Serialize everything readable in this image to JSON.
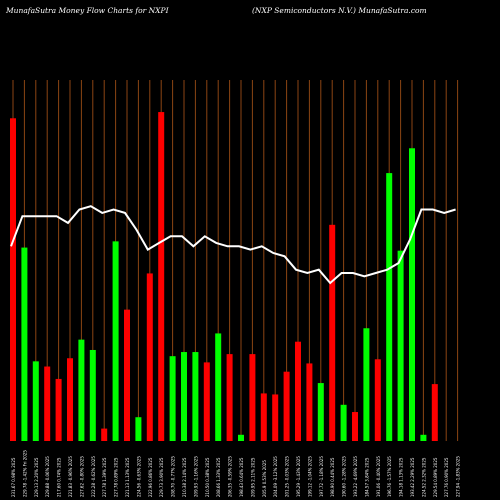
{
  "header": {
    "left": "MunafaSutra  Money Flow  Charts for NXPI",
    "right": "(NXP Semiconductors N.V.) MunafaSutra.com"
  },
  "colors": {
    "background": "#000000",
    "grid": "#8B4513",
    "up": "#00ff00",
    "down": "#ff0000",
    "line": "#ffffff",
    "text": "#ffffff"
  },
  "chart_data": {
    "type": "bar",
    "grid": true,
    "categories": [
      "231.67 0.98% 2025",
      "229.78 -1.42% Fri 2025",
      "229.13 2.20% 2025",
      "229.88 -0.06% 2025",
      "217.60 0.74% 2025",
      "221.83 -0.96% 2025",
      "227.62 -0.80% 2025",
      "222.28 -0.62% 2025",
      "227.78 1.39% 2025",
      "227.78 0.89% 2025",
      "221.13 1.13% 2025",
      "224.56 -0.63% 2025",
      "222.96 0.86% 2025",
      "229.73 3.90% 2025",
      "208.70 -0.77% 2025",
      "210.38 2.14% 2025",
      "209.93 -1.16% 2025",
      "210.50 0.38% 2025",
      "208.66 1.33% 2025",
      "206.35 -0.59% 2025",
      "198.43 0.64% 2025",
      "209.95 2.11% 2025",
      "205.9 0.53% 2025",
      "204.09 -3.12% 2025",
      "201.25 -0.03% 2025",
      "195.29 -1.43% 2025",
      "199.12 -1.04% 2025",
      "197.72 -1.18% 2025",
      "198.90 0.44% 2025",
      "190.60 -1.28% 2025",
      "193.22 -4.69% 2025",
      "184.57 3.84% 2025",
      "191.06 -0.40% 2025",
      "196.76 -1.57% 2025",
      "194.18 1.13% 2025",
      "193.42 2.29% 2025",
      "224.52 2.32% 2025",
      "229.54 0.89% 2025",
      "227.76 0.90% 2025",
      "227.94 -1.83% 2025"
    ],
    "values": [
      312,
      187,
      77,
      72,
      60,
      80,
      98,
      88,
      12,
      193,
      127,
      23,
      162,
      318,
      82,
      86,
      86,
      76,
      104,
      84,
      6,
      84,
      46,
      45,
      67,
      96,
      75,
      56,
      209,
      35,
      28,
      109,
      79,
      259,
      184,
      283,
      6,
      55,
      0,
      0
    ],
    "directions": [
      "down",
      "up",
      "up",
      "down",
      "down",
      "down",
      "up",
      "up",
      "down",
      "up",
      "down",
      "up",
      "down",
      "down",
      "up",
      "up",
      "up",
      "down",
      "up",
      "down",
      "up",
      "down",
      "down",
      "down",
      "down",
      "down",
      "down",
      "up",
      "down",
      "up",
      "down",
      "up",
      "down",
      "up",
      "up",
      "up",
      "up",
      "down",
      "up",
      "down"
    ],
    "line": [
      58,
      67,
      67,
      67,
      67,
      65,
      69,
      70,
      68,
      69,
      68,
      63,
      57,
      59,
      61,
      61,
      58,
      61,
      59,
      58,
      58,
      57,
      58,
      56,
      55,
      51,
      50,
      51,
      47,
      50,
      50,
      49,
      50,
      51,
      53,
      60,
      69,
      69,
      68,
      69
    ],
    "ylim": [
      0,
      320
    ],
    "line_ylim": [
      0,
      100
    ]
  }
}
